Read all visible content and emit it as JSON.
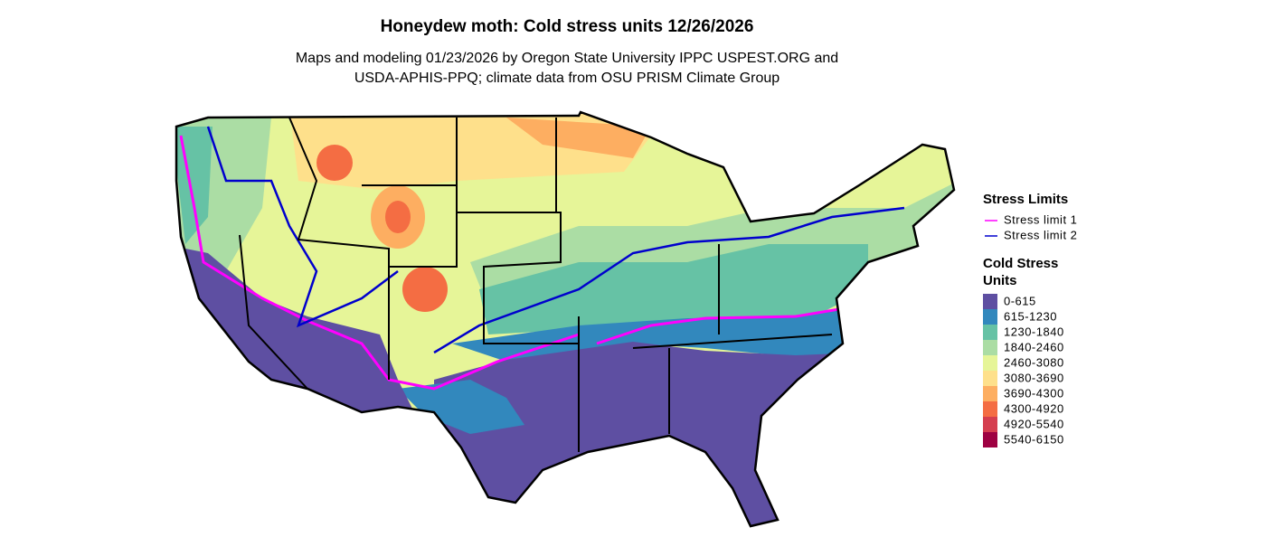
{
  "title": "Honeydew moth: Cold stress units 12/26/2026",
  "subtitle": [
    "Maps and modeling 01/23/2026 by Oregon State University IPPC USPEST.ORG and",
    "USDA-APHIS-PPQ; climate data from OSU PRISM Climate Group"
  ],
  "legend_limits": {
    "title": "Stress Limits",
    "items": [
      {
        "label": "Stress limit 1",
        "color": "#ff00ff"
      },
      {
        "label": "Stress limit 2",
        "color": "#0000cd"
      }
    ]
  },
  "legend_units": {
    "title": [
      "Cold Stress",
      "Units"
    ],
    "items": [
      {
        "label": "0-615",
        "color": "#5e4fa2"
      },
      {
        "label": "615-1230",
        "color": "#3288bd"
      },
      {
        "label": "1230-1840",
        "color": "#66c2a5"
      },
      {
        "label": "1840-2460",
        "color": "#abdda4"
      },
      {
        "label": "2460-3080",
        "color": "#e6f598"
      },
      {
        "label": "3080-3690",
        "color": "#fee08b"
      },
      {
        "label": "3690-4300",
        "color": "#fdae61"
      },
      {
        "label": "4300-4920",
        "color": "#f46d43"
      },
      {
        "label": "4920-5540",
        "color": "#d53e4f"
      },
      {
        "label": "5540-6150",
        "color": "#9e0142"
      }
    ]
  }
}
